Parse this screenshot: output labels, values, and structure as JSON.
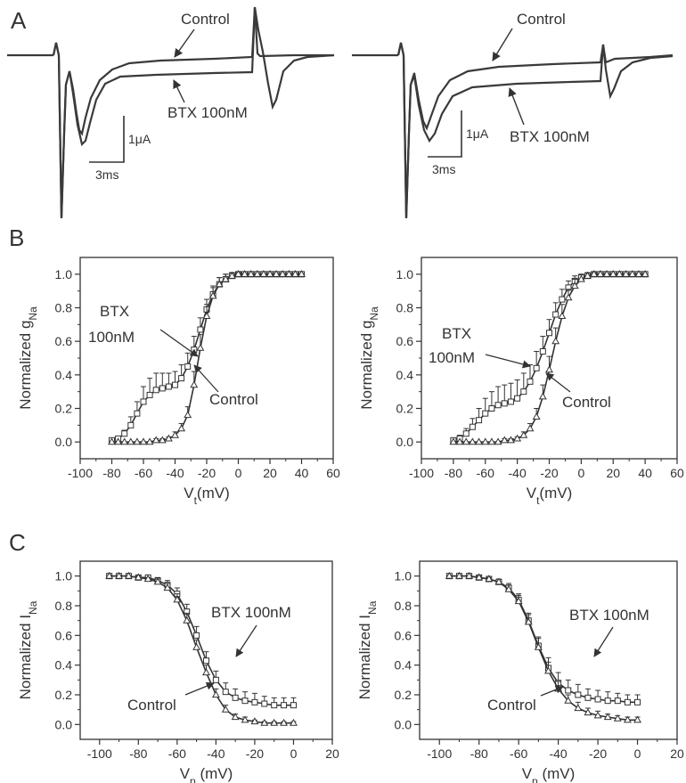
{
  "panels": {
    "A": "A",
    "B": "B",
    "C": "C"
  },
  "colors": {
    "ink": "#333333",
    "trace": "#3a3a3a",
    "background": "#ffffff"
  },
  "chart_data": [
    {
      "id": "A-left",
      "type": "line",
      "title": "",
      "series": [
        {
          "name": "Control"
        },
        {
          "name": "BTX 100nM"
        }
      ],
      "annotations": [
        "Control",
        "BTX 100nM"
      ],
      "scalebar": {
        "current": "1μA",
        "time": "3ms"
      }
    },
    {
      "id": "A-right",
      "type": "line",
      "title": "",
      "series": [
        {
          "name": "Control"
        },
        {
          "name": "BTX 100nM"
        }
      ],
      "annotations": [
        "Control",
        "BTX 100nM"
      ],
      "scalebar": {
        "current": "1μA",
        "time": "3ms"
      }
    },
    {
      "id": "B-left",
      "type": "scatter",
      "xlabel_main": "V",
      "xlabel_sub": "t",
      "xlabel_tail": "(mV)",
      "ylabel_main": "Normalized g",
      "ylabel_sub": "Na",
      "xlim": [
        -100,
        60
      ],
      "ylim": [
        -0.1,
        1.1
      ],
      "xticks": [
        -100,
        -80,
        -60,
        -40,
        -20,
        0,
        20,
        40,
        60
      ],
      "yticks": [
        0.0,
        0.2,
        0.4,
        0.6,
        0.8,
        1.0
      ],
      "labels": {
        "btx_line1": "BTX",
        "btx_line2": "100nM",
        "control": "Control"
      },
      "series": [
        {
          "name": "BTX 100nM",
          "marker": "square",
          "x": [
            -80,
            -76,
            -72,
            -68,
            -64,
            -60,
            -56,
            -52,
            -48,
            -44,
            -40,
            -36,
            -32,
            -28,
            -24,
            -20,
            -16,
            -12,
            -8,
            -4,
            0,
            4,
            8,
            12,
            16,
            20,
            24,
            28,
            32,
            36,
            40
          ],
          "y": [
            0.01,
            0.02,
            0.05,
            0.1,
            0.17,
            0.24,
            0.28,
            0.31,
            0.32,
            0.33,
            0.34,
            0.38,
            0.45,
            0.55,
            0.67,
            0.79,
            0.88,
            0.94,
            0.97,
            0.99,
            1.0,
            1.0,
            1.0,
            1.0,
            1.0,
            1.0,
            1.0,
            1.0,
            1.0,
            1.0,
            1.0
          ],
          "err": [
            0.01,
            0.01,
            0.02,
            0.05,
            0.07,
            0.09,
            0.1,
            0.1,
            0.09,
            0.08,
            0.08,
            0.08,
            0.08,
            0.08,
            0.07,
            0.06,
            0.05,
            0.04,
            0.03,
            0.02,
            0.01,
            0,
            0,
            0,
            0,
            0,
            0,
            0,
            0,
            0,
            0
          ]
        },
        {
          "name": "Control",
          "marker": "triangle",
          "x": [
            -80,
            -76,
            -72,
            -68,
            -64,
            -60,
            -56,
            -52,
            -48,
            -44,
            -40,
            -36,
            -32,
            -28,
            -24,
            -20,
            -16,
            -12,
            -8,
            -4,
            0,
            4,
            8,
            12,
            16,
            20,
            24,
            28,
            32,
            36,
            40
          ],
          "y": [
            0.0,
            0.0,
            0.0,
            0.0,
            0.0,
            0.0,
            0.0,
            0.01,
            0.01,
            0.02,
            0.04,
            0.08,
            0.16,
            0.34,
            0.56,
            0.75,
            0.87,
            0.94,
            0.97,
            0.99,
            1.0,
            1.0,
            1.0,
            1.0,
            1.0,
            1.0,
            1.0,
            1.0,
            1.0,
            1.0,
            1.0
          ],
          "err": [
            0,
            0,
            0,
            0,
            0,
            0,
            0,
            0.01,
            0.01,
            0.01,
            0.02,
            0.03,
            0.05,
            0.08,
            0.08,
            0.07,
            0.05,
            0.04,
            0.03,
            0.02,
            0.01,
            0,
            0,
            0,
            0,
            0,
            0,
            0,
            0,
            0,
            0
          ]
        }
      ]
    },
    {
      "id": "B-right",
      "type": "scatter",
      "xlabel_main": "V",
      "xlabel_sub": "t",
      "xlabel_tail": "(mV)",
      "ylabel_main": "Normalized g",
      "ylabel_sub": "Na",
      "xlim": [
        -100,
        60
      ],
      "ylim": [
        -0.1,
        1.1
      ],
      "xticks": [
        -100,
        -80,
        -60,
        -40,
        -20,
        0,
        20,
        40,
        60
      ],
      "yticks": [
        0.0,
        0.2,
        0.4,
        0.6,
        0.8,
        1.0
      ],
      "labels": {
        "btx_line1": "BTX",
        "btx_line2": "100nM",
        "control": "Control"
      },
      "series": [
        {
          "name": "BTX 100nM",
          "marker": "square",
          "x": [
            -80,
            -76,
            -72,
            -68,
            -64,
            -60,
            -56,
            -52,
            -48,
            -44,
            -40,
            -36,
            -32,
            -28,
            -24,
            -20,
            -16,
            -12,
            -8,
            -4,
            0,
            4,
            8,
            12,
            16,
            20,
            24,
            28,
            32,
            36,
            40
          ],
          "y": [
            0.01,
            0.02,
            0.05,
            0.09,
            0.13,
            0.17,
            0.2,
            0.22,
            0.23,
            0.24,
            0.26,
            0.3,
            0.36,
            0.44,
            0.54,
            0.65,
            0.76,
            0.85,
            0.92,
            0.96,
            0.98,
            0.99,
            1.0,
            1.0,
            1.0,
            1.0,
            1.0,
            1.0,
            1.0,
            1.0,
            1.0
          ],
          "err": [
            0.01,
            0.02,
            0.03,
            0.05,
            0.07,
            0.09,
            0.1,
            0.11,
            0.11,
            0.11,
            0.11,
            0.11,
            0.1,
            0.1,
            0.09,
            0.08,
            0.07,
            0.06,
            0.04,
            0.03,
            0.02,
            0.01,
            0,
            0,
            0,
            0,
            0,
            0,
            0,
            0,
            0
          ]
        },
        {
          "name": "Control",
          "marker": "triangle",
          "x": [
            -80,
            -76,
            -72,
            -68,
            -64,
            -60,
            -56,
            -52,
            -48,
            -44,
            -40,
            -36,
            -32,
            -28,
            -24,
            -20,
            -16,
            -12,
            -8,
            -4,
            0,
            4,
            8,
            12,
            16,
            20,
            24,
            28,
            32,
            36,
            40
          ],
          "y": [
            0.0,
            0.0,
            0.0,
            0.0,
            0.0,
            0.0,
            0.0,
            0.0,
            0.01,
            0.01,
            0.02,
            0.04,
            0.08,
            0.15,
            0.27,
            0.43,
            0.6,
            0.75,
            0.86,
            0.93,
            0.97,
            0.99,
            1.0,
            1.0,
            1.0,
            1.0,
            1.0,
            1.0,
            1.0,
            1.0,
            1.0
          ],
          "err": [
            0,
            0,
            0,
            0,
            0,
            0,
            0,
            0,
            0.01,
            0.01,
            0.01,
            0.02,
            0.03,
            0.05,
            0.07,
            0.08,
            0.08,
            0.07,
            0.05,
            0.04,
            0.03,
            0.02,
            0.01,
            0,
            0,
            0,
            0,
            0,
            0,
            0,
            0
          ]
        }
      ]
    },
    {
      "id": "C-left",
      "type": "scatter",
      "xlabel_main": "V",
      "xlabel_sub": "p",
      "xlabel_tail": " (mV)",
      "ylabel_main": "Normalized I",
      "ylabel_sub": "Na",
      "xlim": [
        -110,
        20
      ],
      "ylim": [
        -0.1,
        1.1
      ],
      "xticks": [
        -100,
        -80,
        -60,
        -40,
        -20,
        0,
        20
      ],
      "yticks": [
        0.0,
        0.2,
        0.4,
        0.6,
        0.8,
        1.0
      ],
      "labels": {
        "btx": "BTX 100nM",
        "control": "Control"
      },
      "series": [
        {
          "name": "BTX 100nM",
          "marker": "square",
          "x": [
            -95,
            -90,
            -85,
            -80,
            -75,
            -70,
            -65,
            -60,
            -55,
            -50,
            -45,
            -40,
            -35,
            -30,
            -25,
            -20,
            -15,
            -10,
            -5,
            0
          ],
          "y": [
            1.0,
            1.0,
            1.0,
            0.99,
            0.99,
            0.97,
            0.94,
            0.88,
            0.76,
            0.6,
            0.43,
            0.3,
            0.22,
            0.18,
            0.16,
            0.15,
            0.14,
            0.13,
            0.13,
            0.13
          ],
          "err": [
            0,
            0,
            0,
            0.01,
            0.01,
            0.02,
            0.03,
            0.04,
            0.05,
            0.06,
            0.06,
            0.06,
            0.06,
            0.06,
            0.06,
            0.06,
            0.05,
            0.05,
            0.05,
            0.05
          ]
        },
        {
          "name": "Control",
          "marker": "triangle",
          "x": [
            -95,
            -90,
            -85,
            -80,
            -75,
            -70,
            -65,
            -60,
            -55,
            -50,
            -45,
            -40,
            -35,
            -30,
            -25,
            -20,
            -15,
            -10,
            -5,
            0
          ],
          "y": [
            1.0,
            1.0,
            1.0,
            0.99,
            0.98,
            0.96,
            0.92,
            0.84,
            0.7,
            0.52,
            0.35,
            0.2,
            0.1,
            0.05,
            0.03,
            0.02,
            0.01,
            0.01,
            0.01,
            0.01
          ],
          "err": [
            0,
            0,
            0,
            0.01,
            0.01,
            0.02,
            0.03,
            0.04,
            0.05,
            0.05,
            0.05,
            0.04,
            0.03,
            0.02,
            0.02,
            0.01,
            0.01,
            0.01,
            0.01,
            0.01
          ]
        }
      ]
    },
    {
      "id": "C-right",
      "type": "scatter",
      "xlabel_main": "V",
      "xlabel_sub": "p",
      "xlabel_tail": " (mV)",
      "ylabel_main": "Normalized I",
      "ylabel_sub": "Na",
      "xlim": [
        -110,
        20
      ],
      "ylim": [
        -0.1,
        1.1
      ],
      "xticks": [
        -100,
        -80,
        -60,
        -40,
        -20,
        0,
        20
      ],
      "yticks": [
        0.0,
        0.2,
        0.4,
        0.6,
        0.8,
        1.0
      ],
      "labels": {
        "btx": "BTX 100nM",
        "control": "Control"
      },
      "series": [
        {
          "name": "BTX 100nM",
          "marker": "square",
          "x": [
            -95,
            -90,
            -85,
            -80,
            -75,
            -70,
            -65,
            -60,
            -55,
            -50,
            -45,
            -40,
            -35,
            -30,
            -25,
            -20,
            -15,
            -10,
            -5,
            0
          ],
          "y": [
            1.0,
            1.0,
            1.0,
            0.99,
            0.98,
            0.96,
            0.92,
            0.84,
            0.7,
            0.53,
            0.38,
            0.28,
            0.23,
            0.2,
            0.18,
            0.17,
            0.16,
            0.16,
            0.15,
            0.15
          ],
          "err": [
            0,
            0,
            0,
            0.01,
            0.01,
            0.02,
            0.03,
            0.04,
            0.05,
            0.06,
            0.07,
            0.07,
            0.07,
            0.07,
            0.06,
            0.06,
            0.06,
            0.05,
            0.05,
            0.05
          ]
        },
        {
          "name": "Control",
          "marker": "triangle",
          "x": [
            -95,
            -90,
            -85,
            -80,
            -75,
            -70,
            -65,
            -60,
            -55,
            -50,
            -45,
            -40,
            -35,
            -30,
            -25,
            -20,
            -15,
            -10,
            -5,
            0
          ],
          "y": [
            1.0,
            1.0,
            1.0,
            0.99,
            0.98,
            0.96,
            0.91,
            0.83,
            0.69,
            0.52,
            0.36,
            0.24,
            0.16,
            0.11,
            0.08,
            0.06,
            0.05,
            0.04,
            0.03,
            0.03
          ],
          "err": [
            0,
            0,
            0,
            0.01,
            0.01,
            0.02,
            0.03,
            0.04,
            0.05,
            0.06,
            0.06,
            0.05,
            0.04,
            0.04,
            0.03,
            0.03,
            0.02,
            0.02,
            0.02,
            0.02
          ]
        }
      ]
    }
  ]
}
